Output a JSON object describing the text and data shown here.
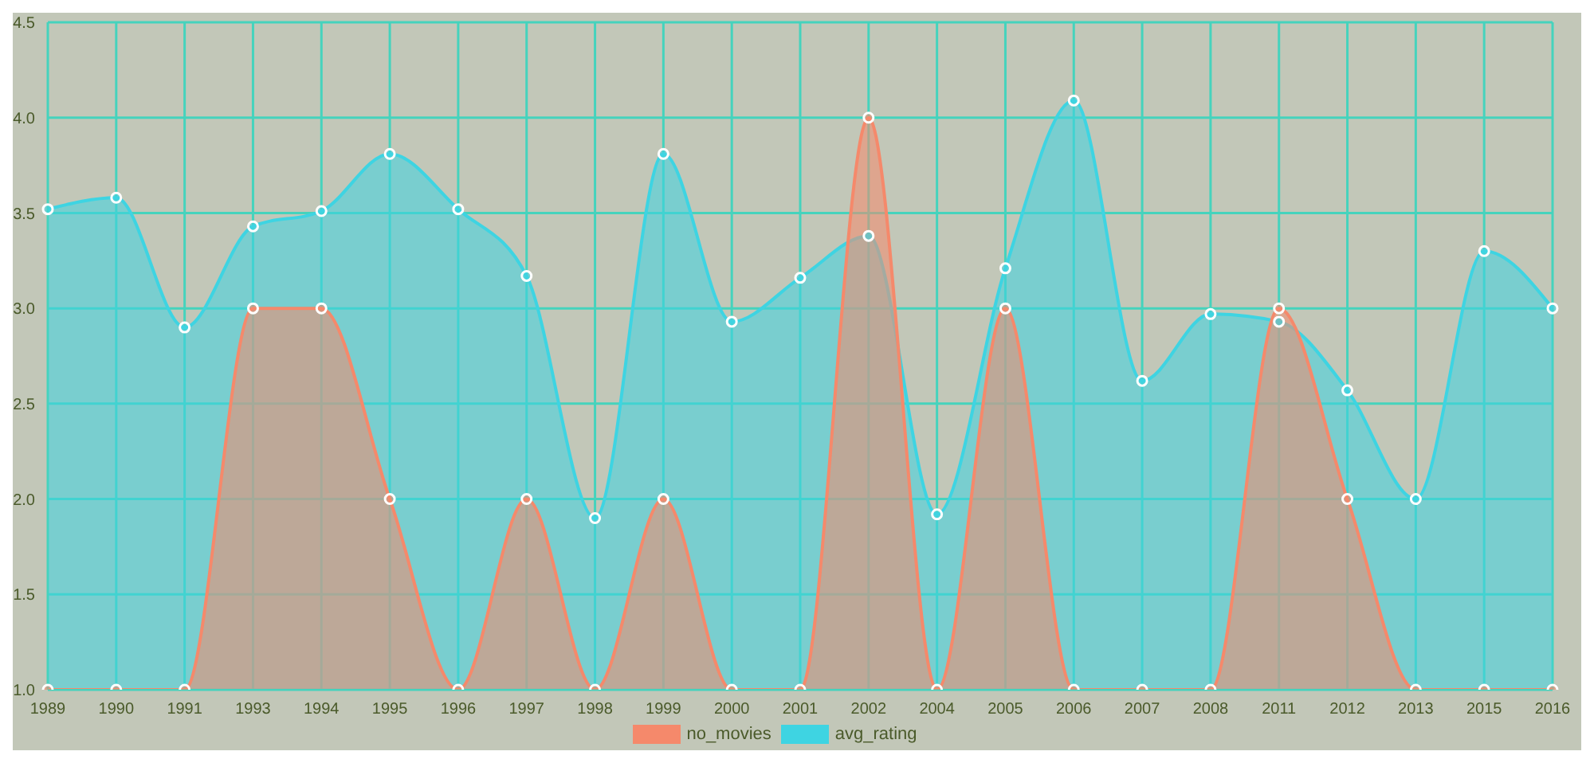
{
  "chart_data": {
    "type": "area",
    "categories": [
      "1989",
      "1990",
      "1991",
      "1993",
      "1994",
      "1995",
      "1996",
      "1997",
      "1998",
      "1999",
      "2000",
      "2001",
      "2002",
      "2004",
      "2005",
      "2006",
      "2007",
      "2008",
      "2011",
      "2012",
      "2013",
      "2015",
      "2016"
    ],
    "series": [
      {
        "name": "no_movies",
        "color": "#f5896b",
        "values": [
          1,
          1,
          1,
          3,
          3,
          2,
          1,
          2,
          1,
          2,
          1,
          1,
          4,
          1,
          3,
          1,
          1,
          1,
          3,
          2,
          1,
          1,
          1
        ]
      },
      {
        "name": "avg_rating",
        "color": "#3ed4e2",
        "values": [
          3.52,
          3.58,
          2.9,
          3.43,
          3.51,
          3.81,
          3.52,
          3.17,
          1.9,
          3.81,
          2.93,
          3.16,
          3.38,
          1.92,
          3.21,
          4.09,
          2.62,
          2.97,
          2.93,
          2.57,
          2.0,
          3.3,
          3.0
        ]
      }
    ],
    "ylim": [
      1.0,
      4.5
    ],
    "yticks": [
      {
        "value": 1,
        "label": "1.0"
      },
      {
        "value": 1.5,
        "label": "1.5"
      },
      {
        "value": 2,
        "label": "2.0"
      },
      {
        "value": 2.5,
        "label": "2.5"
      },
      {
        "value": 3,
        "label": "3.0"
      },
      {
        "value": 3.5,
        "label": "3.5"
      },
      {
        "value": 4,
        "label": "4.0"
      },
      {
        "value": 4.5,
        "label": "4.5"
      }
    ],
    "grid": true,
    "legend": "bottom",
    "marker": "circle"
  }
}
